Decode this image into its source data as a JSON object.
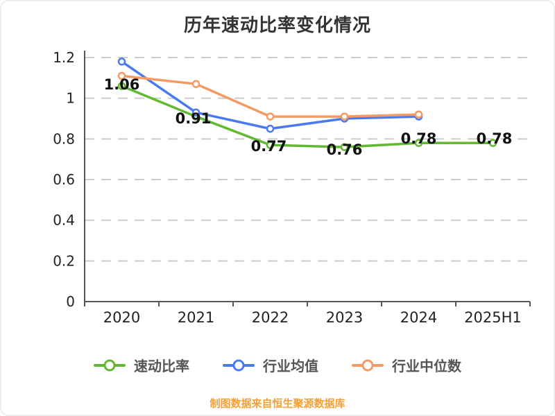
{
  "title": {
    "text": "历年速动比率变化情况"
  },
  "footer": {
    "text": "制图数据来自恒生聚源数据库"
  },
  "colors": {
    "quick_ratio": "#61b832",
    "industry_avg": "#4a7af0",
    "industry_median": "#f59a63",
    "grid": "#cccccc",
    "axis": "#555555",
    "axis_text": "#222222",
    "data_label": "#111111",
    "title_text": "#333333",
    "footer_text": "#f5a034"
  },
  "chart_data": {
    "type": "line",
    "title": "历年速动比率变化情况",
    "categories": [
      "2020",
      "2021",
      "2022",
      "2023",
      "2024",
      "2025H1"
    ],
    "ylim": [
      0,
      1.2
    ],
    "yticks": [
      {
        "value": 0,
        "label": "0"
      },
      {
        "value": 0.2,
        "label": "0.2"
      },
      {
        "value": 0.4,
        "label": "0.4"
      },
      {
        "value": 0.6,
        "label": "0.6"
      },
      {
        "value": 0.8,
        "label": "0.8"
      },
      {
        "value": 1,
        "label": "1"
      },
      {
        "value": 1.2,
        "label": "1.2"
      }
    ],
    "grid": "dashed",
    "legend_position": "bottom",
    "series": [
      {
        "name": "速动比率",
        "color": "#61b832",
        "values": [
          1.06,
          0.91,
          0.77,
          0.76,
          0.78,
          0.78
        ],
        "labels": [
          "1.06",
          "0.91",
          "0.77",
          "0.76",
          "0.78",
          "0.78"
        ],
        "label_offsets": [
          [
            0,
            5
          ],
          [
            -4,
            10
          ],
          [
            -2,
            9
          ],
          [
            0,
            11
          ],
          [
            0,
            1
          ],
          [
            2,
            1
          ]
        ]
      },
      {
        "name": "行业均值",
        "color": "#4a7af0",
        "values": [
          1.18,
          0.93,
          0.85,
          0.9,
          0.91,
          null
        ],
        "labels": null
      },
      {
        "name": "行业中位数",
        "color": "#f59a63",
        "values": [
          1.11,
          1.07,
          0.91,
          0.91,
          0.92,
          null
        ],
        "labels": null
      }
    ]
  }
}
